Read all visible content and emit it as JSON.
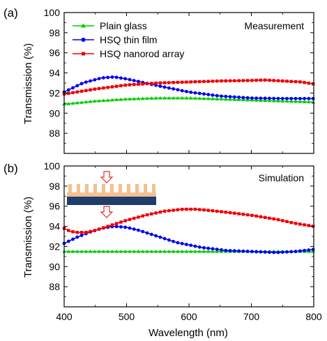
{
  "figure": {
    "xlabel": "Wavelength (nm)"
  },
  "chart_data": [
    {
      "type": "line",
      "panel_label": "(a)",
      "title": "Measurement",
      "xlabel": "Wavelength (nm)",
      "ylabel": "Transmission (%)",
      "xlim": [
        400,
        800
      ],
      "ylim": [
        86,
        100
      ],
      "xticks": [
        400,
        500,
        600,
        700,
        800
      ],
      "yticks": [
        88,
        90,
        92,
        94,
        96,
        98,
        100
      ],
      "legend_position": "top-left",
      "series": [
        {
          "name": "Plain glass",
          "color": "#00cc00",
          "marker": "triangle",
          "x": [
            400,
            450,
            500,
            550,
            600,
            650,
            700,
            750,
            800
          ],
          "y": [
            90.9,
            91.2,
            91.4,
            91.5,
            91.5,
            91.4,
            91.3,
            91.2,
            91.1
          ]
        },
        {
          "name": "HSQ thin film",
          "color": "#0000ee",
          "marker": "circle",
          "x": [
            400,
            430,
            460,
            480,
            500,
            530,
            560,
            600,
            650,
            700,
            750,
            800
          ],
          "y": [
            92.1,
            93.0,
            93.5,
            93.6,
            93.4,
            93.0,
            92.6,
            92.1,
            91.7,
            91.5,
            91.45,
            91.45
          ]
        },
        {
          "name": "HSQ nanorod array",
          "color": "#ee0000",
          "marker": "square",
          "x": [
            400,
            450,
            500,
            550,
            600,
            650,
            700,
            720,
            750,
            780,
            800
          ],
          "y": [
            91.9,
            92.4,
            92.8,
            93.0,
            93.1,
            93.2,
            93.25,
            93.3,
            93.2,
            93.1,
            92.9
          ]
        }
      ]
    },
    {
      "type": "line",
      "panel_label": "(b)",
      "title": "Simulation",
      "xlabel": "Wavelength (nm)",
      "ylabel": "Transmission (%)",
      "xlim": [
        400,
        800
      ],
      "ylim": [
        86,
        100
      ],
      "xticks": [
        400,
        500,
        600,
        700,
        800
      ],
      "yticks": [
        88,
        90,
        92,
        94,
        96,
        98,
        100
      ],
      "series": [
        {
          "name": "Plain glass",
          "color": "#00cc00",
          "marker": "triangle",
          "x": [
            400,
            450,
            500,
            550,
            600,
            650,
            700,
            750,
            800
          ],
          "y": [
            91.5,
            91.5,
            91.5,
            91.5,
            91.5,
            91.5,
            91.5,
            91.5,
            91.5
          ]
        },
        {
          "name": "HSQ thin film",
          "color": "#0000ee",
          "marker": "circle",
          "x": [
            400,
            420,
            440,
            460,
            480,
            500,
            520,
            550,
            580,
            620,
            660,
            700,
            740,
            770,
            800
          ],
          "y": [
            92.3,
            92.9,
            93.4,
            93.8,
            94.0,
            93.9,
            93.6,
            93.0,
            92.4,
            91.9,
            91.6,
            91.5,
            91.4,
            91.5,
            91.7
          ]
        },
        {
          "name": "HSQ nanorod array",
          "color": "#ee0000",
          "marker": "square",
          "x": [
            400,
            410,
            420,
            435,
            450,
            470,
            500,
            530,
            560,
            590,
            610,
            630,
            660,
            700,
            740,
            770,
            800
          ],
          "y": [
            93.8,
            93.5,
            93.4,
            93.4,
            93.6,
            94.0,
            94.6,
            95.1,
            95.5,
            95.7,
            95.7,
            95.6,
            95.4,
            95.1,
            94.7,
            94.3,
            94.0
          ]
        }
      ]
    }
  ]
}
